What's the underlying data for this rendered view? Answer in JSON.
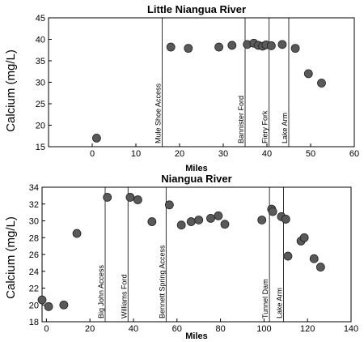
{
  "ylabel": "Calcium (mg/L)",
  "chart_data": [
    {
      "type": "scatter",
      "title": "Little Niangua River",
      "xlabel": "Miles",
      "ylabel": "Calcium (mg/L)",
      "xlim": [
        -10,
        60
      ],
      "ylim": [
        15,
        45
      ],
      "xticks": [
        0,
        10,
        20,
        30,
        40,
        50,
        60
      ],
      "yticks": [
        15,
        20,
        25,
        30,
        35,
        40,
        45
      ],
      "marker_color": "#595959",
      "points": [
        {
          "x": 1,
          "y": 17
        },
        {
          "x": 18,
          "y": 38.2
        },
        {
          "x": 22,
          "y": 37.9
        },
        {
          "x": 29,
          "y": 38.2
        },
        {
          "x": 32,
          "y": 38.6
        },
        {
          "x": 35.5,
          "y": 38.8
        },
        {
          "x": 37,
          "y": 39.1
        },
        {
          "x": 38,
          "y": 38.6
        },
        {
          "x": 39,
          "y": 38.4
        },
        {
          "x": 39.8,
          "y": 38.7
        },
        {
          "x": 41,
          "y": 38.5
        },
        {
          "x": 43.5,
          "y": 38.8
        },
        {
          "x": 46.5,
          "y": 37.9
        },
        {
          "x": 49.5,
          "y": 32
        },
        {
          "x": 52.5,
          "y": 29.8
        }
      ],
      "annotations": [
        {
          "x": 16,
          "label": "Mule Shoe Access"
        },
        {
          "x": 35,
          "label": "Bannister Ford"
        },
        {
          "x": 40.5,
          "label": "Fiery Fork"
        },
        {
          "x": 45,
          "label": "Lake Arm"
        }
      ]
    },
    {
      "type": "scatter",
      "title": "Niangua River",
      "xlabel": "Miles",
      "ylabel": "Calcium (mg/L)",
      "xlim": [
        -2,
        140
      ],
      "ylim": [
        18,
        34
      ],
      "xticks": [
        0,
        20,
        40,
        60,
        80,
        100,
        120,
        140
      ],
      "yticks": [
        18,
        20,
        22,
        24,
        26,
        28,
        30,
        32,
        34
      ],
      "marker_color": "#595959",
      "points": [
        {
          "x": -2,
          "y": 20.6
        },
        {
          "x": 1,
          "y": 19.8
        },
        {
          "x": 8,
          "y": 20
        },
        {
          "x": 14,
          "y": 28.5
        },
        {
          "x": 28,
          "y": 32.8
        },
        {
          "x": 38.5,
          "y": 32.8
        },
        {
          "x": 42,
          "y": 32.5
        },
        {
          "x": 48.5,
          "y": 29.9
        },
        {
          "x": 56.5,
          "y": 31.9
        },
        {
          "x": 62,
          "y": 29.5
        },
        {
          "x": 66.5,
          "y": 29.9
        },
        {
          "x": 70,
          "y": 30.1
        },
        {
          "x": 75.5,
          "y": 30.3
        },
        {
          "x": 79,
          "y": 30.6
        },
        {
          "x": 82,
          "y": 29.6
        },
        {
          "x": 99,
          "y": 30.1
        },
        {
          "x": 103.5,
          "y": 31.4
        },
        {
          "x": 104,
          "y": 31.1
        },
        {
          "x": 108,
          "y": 30.5
        },
        {
          "x": 110,
          "y": 30.2
        },
        {
          "x": 111,
          "y": 25.8
        },
        {
          "x": 117,
          "y": 27.6
        },
        {
          "x": 118.5,
          "y": 28
        },
        {
          "x": 123,
          "y": 25.5
        },
        {
          "x": 126,
          "y": 24.5
        }
      ],
      "annotations": [
        {
          "x": 27,
          "label": "Big John Access"
        },
        {
          "x": 37.5,
          "label": "Williams Ford"
        },
        {
          "x": 55,
          "label": "Bennett Spring Access"
        },
        {
          "x": 102.5,
          "label": "Tunnel Dam"
        },
        {
          "x": 109,
          "label": "Lake Arm"
        }
      ]
    }
  ]
}
